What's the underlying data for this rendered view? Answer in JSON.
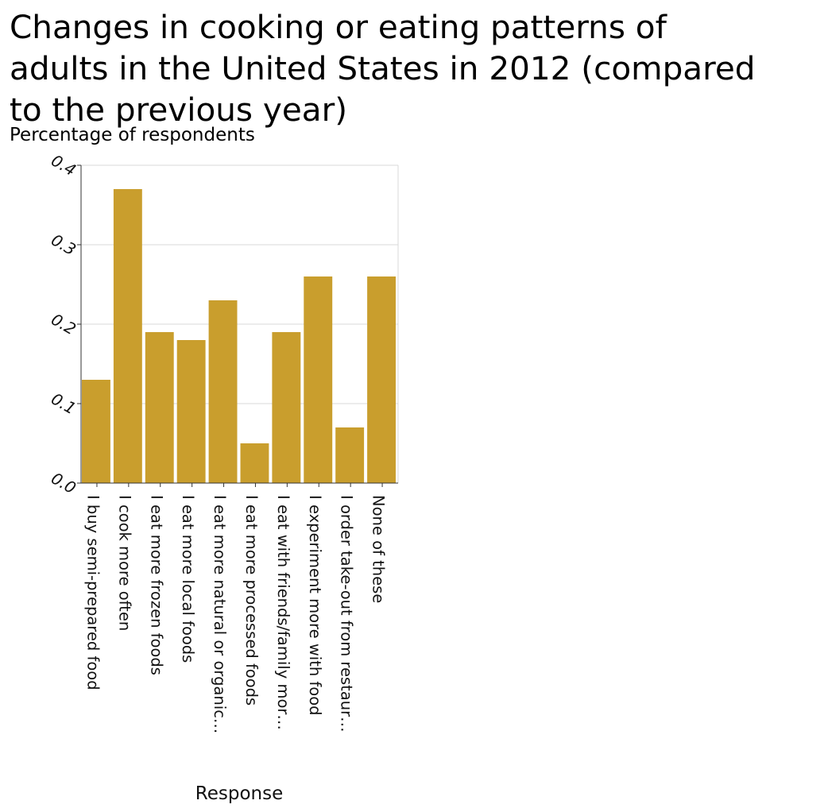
{
  "chart_data": {
    "type": "bar",
    "title": "Changes in cooking or eating patterns of\nadults in the United States in 2012 (compared\nto the previous year)",
    "ylabel": "Percentage of respondents",
    "xlabel": "Response",
    "ylim": [
      0,
      0.4
    ],
    "yticks": [
      "0.0",
      "0.1",
      "0.2",
      "0.3",
      "0.4"
    ],
    "grid": true,
    "color": "#c99e2d",
    "categories": [
      "I buy semi-prepared food",
      "I cook more often",
      "I eat more frozen foods",
      "I eat more local foods",
      "I eat more natural or organic…",
      "I eat more processed foods",
      "I eat with friends/family mor…",
      "I experiment more with food",
      "I order take-out from restaur…",
      "None of these"
    ],
    "values": [
      0.13,
      0.37,
      0.19,
      0.18,
      0.23,
      0.05,
      0.19,
      0.26,
      0.07,
      0.26
    ]
  }
}
